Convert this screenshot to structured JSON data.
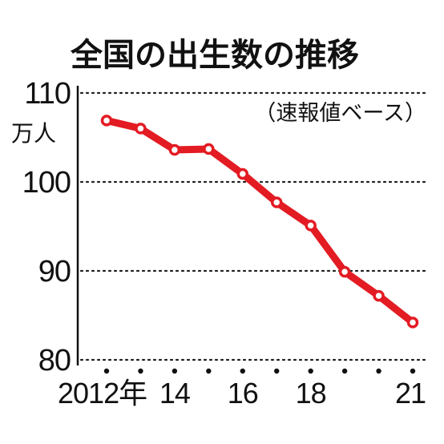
{
  "chart_data": {
    "type": "line",
    "title": "全国の出生数の推移",
    "subtitle": "（速報値ベース）",
    "y_unit": "万人",
    "x": [
      2012,
      2013,
      2014,
      2015,
      2016,
      2017,
      2018,
      2019,
      2020,
      2021
    ],
    "x_tick_labels": [
      {
        "x": 2012,
        "label": "2012年"
      },
      {
        "x": 2014,
        "label": "14"
      },
      {
        "x": 2016,
        "label": "16"
      },
      {
        "x": 2018,
        "label": "18"
      },
      {
        "x": 2021,
        "label": "21"
      }
    ],
    "series": [
      {
        "values": [
          106.9,
          106.0,
          103.6,
          103.7,
          100.9,
          97.7,
          95.1,
          89.9,
          87.2,
          84.2
        ],
        "color": "#e31b23"
      }
    ],
    "ylim": [
      80,
      110
    ],
    "y_ticks": [
      80,
      90,
      100,
      110
    ],
    "grid": true,
    "legend": "none"
  }
}
